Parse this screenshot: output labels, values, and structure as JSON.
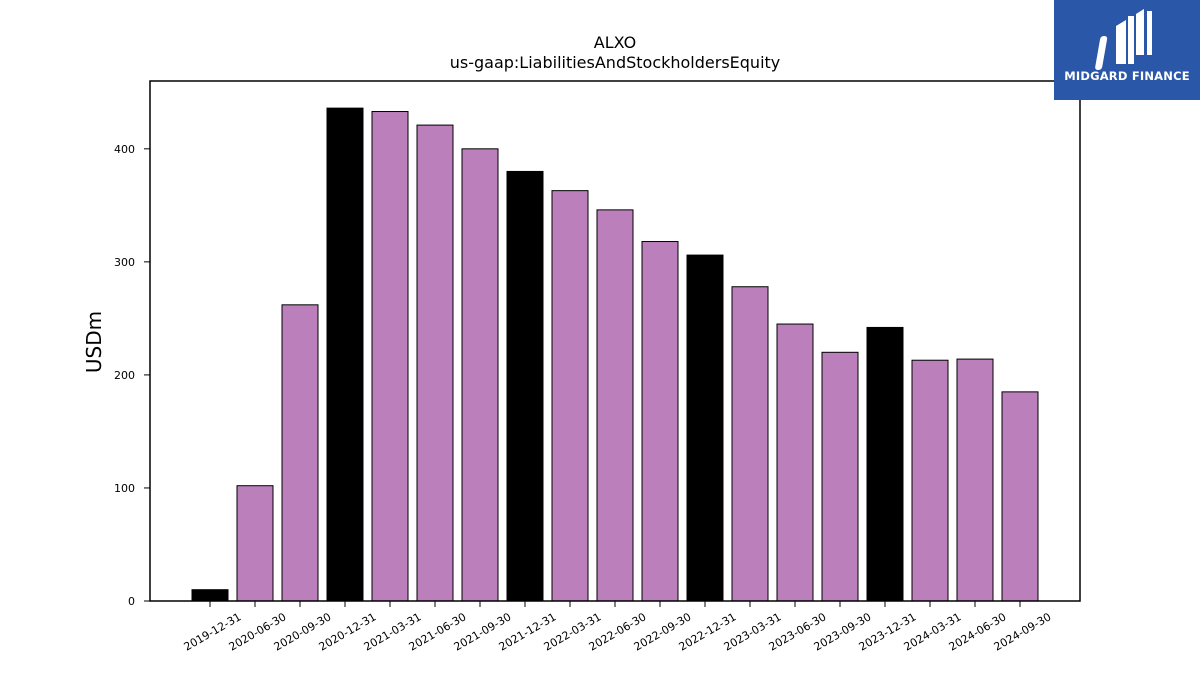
{
  "chart_data": {
    "type": "bar",
    "title": "ALXO",
    "subtitle": "us-gaap:LiabilitiesAndStockholdersEquity",
    "xlabel": "",
    "ylabel": "USDm",
    "ylim": [
      0,
      460
    ],
    "yticks": [
      0,
      100,
      200,
      300,
      400
    ],
    "grid": false,
    "categories": [
      "2019-12-31",
      "2020-06-30",
      "2020-09-30",
      "2020-12-31",
      "2021-03-31",
      "2021-06-30",
      "2021-09-30",
      "2021-12-31",
      "2022-03-31",
      "2022-06-30",
      "2022-09-30",
      "2022-12-31",
      "2023-03-31",
      "2023-06-30",
      "2023-09-30",
      "2023-12-31",
      "2024-03-31",
      "2024-06-30",
      "2024-09-30"
    ],
    "values": [
      10,
      102,
      262,
      436,
      433,
      421,
      400,
      380,
      363,
      346,
      318,
      306,
      278,
      245,
      220,
      242,
      213,
      214,
      185
    ],
    "annual": [
      true,
      false,
      false,
      true,
      false,
      false,
      false,
      true,
      false,
      false,
      false,
      true,
      false,
      false,
      false,
      true,
      false,
      false,
      false
    ],
    "colors": {
      "annual": "#000000",
      "quarterly": "#bb7fbc",
      "edge": "#000000"
    }
  },
  "logo": {
    "text": "MIDGARD FINANCE",
    "background": "#2b57a8"
  }
}
